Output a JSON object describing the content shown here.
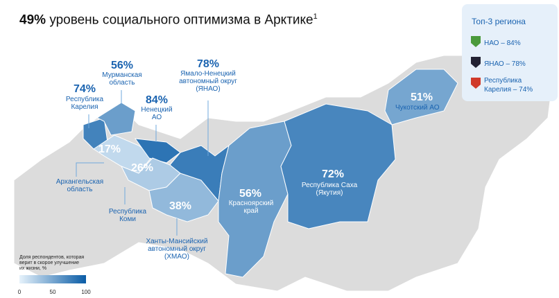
{
  "title": {
    "highlight": "49%",
    "text": "уровень социального оптимизма в Арктике",
    "footnote": "1"
  },
  "regions": [
    {
      "name": "Республика\nКарелия",
      "value": 74,
      "value_label": "74%"
    },
    {
      "name": "Мурманская\nобласть",
      "value": 56,
      "value_label": "56%"
    },
    {
      "name": "Архангельская\nобласть",
      "value": 17,
      "value_label": "17%"
    },
    {
      "name": "Ненецкий\nАО",
      "value": 84,
      "value_label": "84%"
    },
    {
      "name": "Республика\nКоми",
      "value": 26,
      "value_label": "26%"
    },
    {
      "name": "Ханты-Мансийский\nавтономный округ\n(ХМАО)",
      "value": 38,
      "value_label": "38%"
    },
    {
      "name": "Ямало-Ненецкий\nавтономный округ\n(ЯНАО)",
      "value": 78,
      "value_label": "78%"
    },
    {
      "name": "Красноярский\nкрай",
      "value": 56,
      "value_label": "56%"
    },
    {
      "name": "Республика Саха\n(Якутия)",
      "value": 72,
      "value_label": "72%"
    },
    {
      "name": "Чукотский АО",
      "value": 51,
      "value_label": "51%"
    }
  ],
  "top3": {
    "title": "Топ-3 региона",
    "items": [
      "НАО – 84%",
      "ЯНАО – 78%",
      "Республика\nКарелия – 74%"
    ]
  },
  "legend": {
    "title": "Доля респондентов, которая\nверит в скорое улучшение\nих жизни, %",
    "ticks": [
      0,
      50,
      100
    ],
    "colors": [
      "#e6f2fb",
      "#0a5ca6"
    ]
  }
}
